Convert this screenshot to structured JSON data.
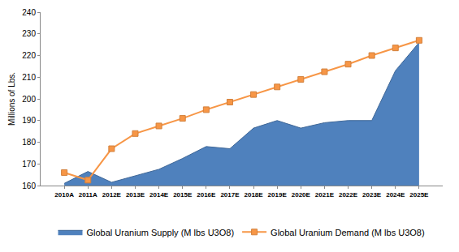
{
  "chart_data": {
    "type": "line",
    "y_label": "Millions of Lbs.",
    "categories": [
      "2010A",
      "2011A",
      "2012E",
      "2013E",
      "2014E",
      "2015E",
      "2016E",
      "2017E",
      "2018E",
      "2019E",
      "2020E",
      "2021E",
      "2022E",
      "2023E",
      "2024E",
      "2025E"
    ],
    "series": [
      {
        "name": "Global Uranium Supply (M lbs U3O8)",
        "type": "area",
        "color": "#4F81BD",
        "values": [
          161,
          166.5,
          161.5,
          164.5,
          167.5,
          172.5,
          178,
          177,
          186.5,
          190,
          186.5,
          189,
          190,
          190,
          213,
          226
        ]
      },
      {
        "name": "Global Uranium Demand (M lbs U3O8)",
        "type": "line",
        "color": "#F79646",
        "marker": "square",
        "values": [
          166,
          162.5,
          177,
          184,
          187.5,
          191,
          195,
          198.5,
          202,
          205.5,
          209,
          212.5,
          216,
          220,
          223.5,
          227
        ]
      }
    ],
    "ylim": [
      160,
      240
    ],
    "yticks": [
      160,
      170,
      180,
      190,
      200,
      210,
      220,
      230,
      240
    ],
    "grid": false,
    "legend": "bottom"
  }
}
